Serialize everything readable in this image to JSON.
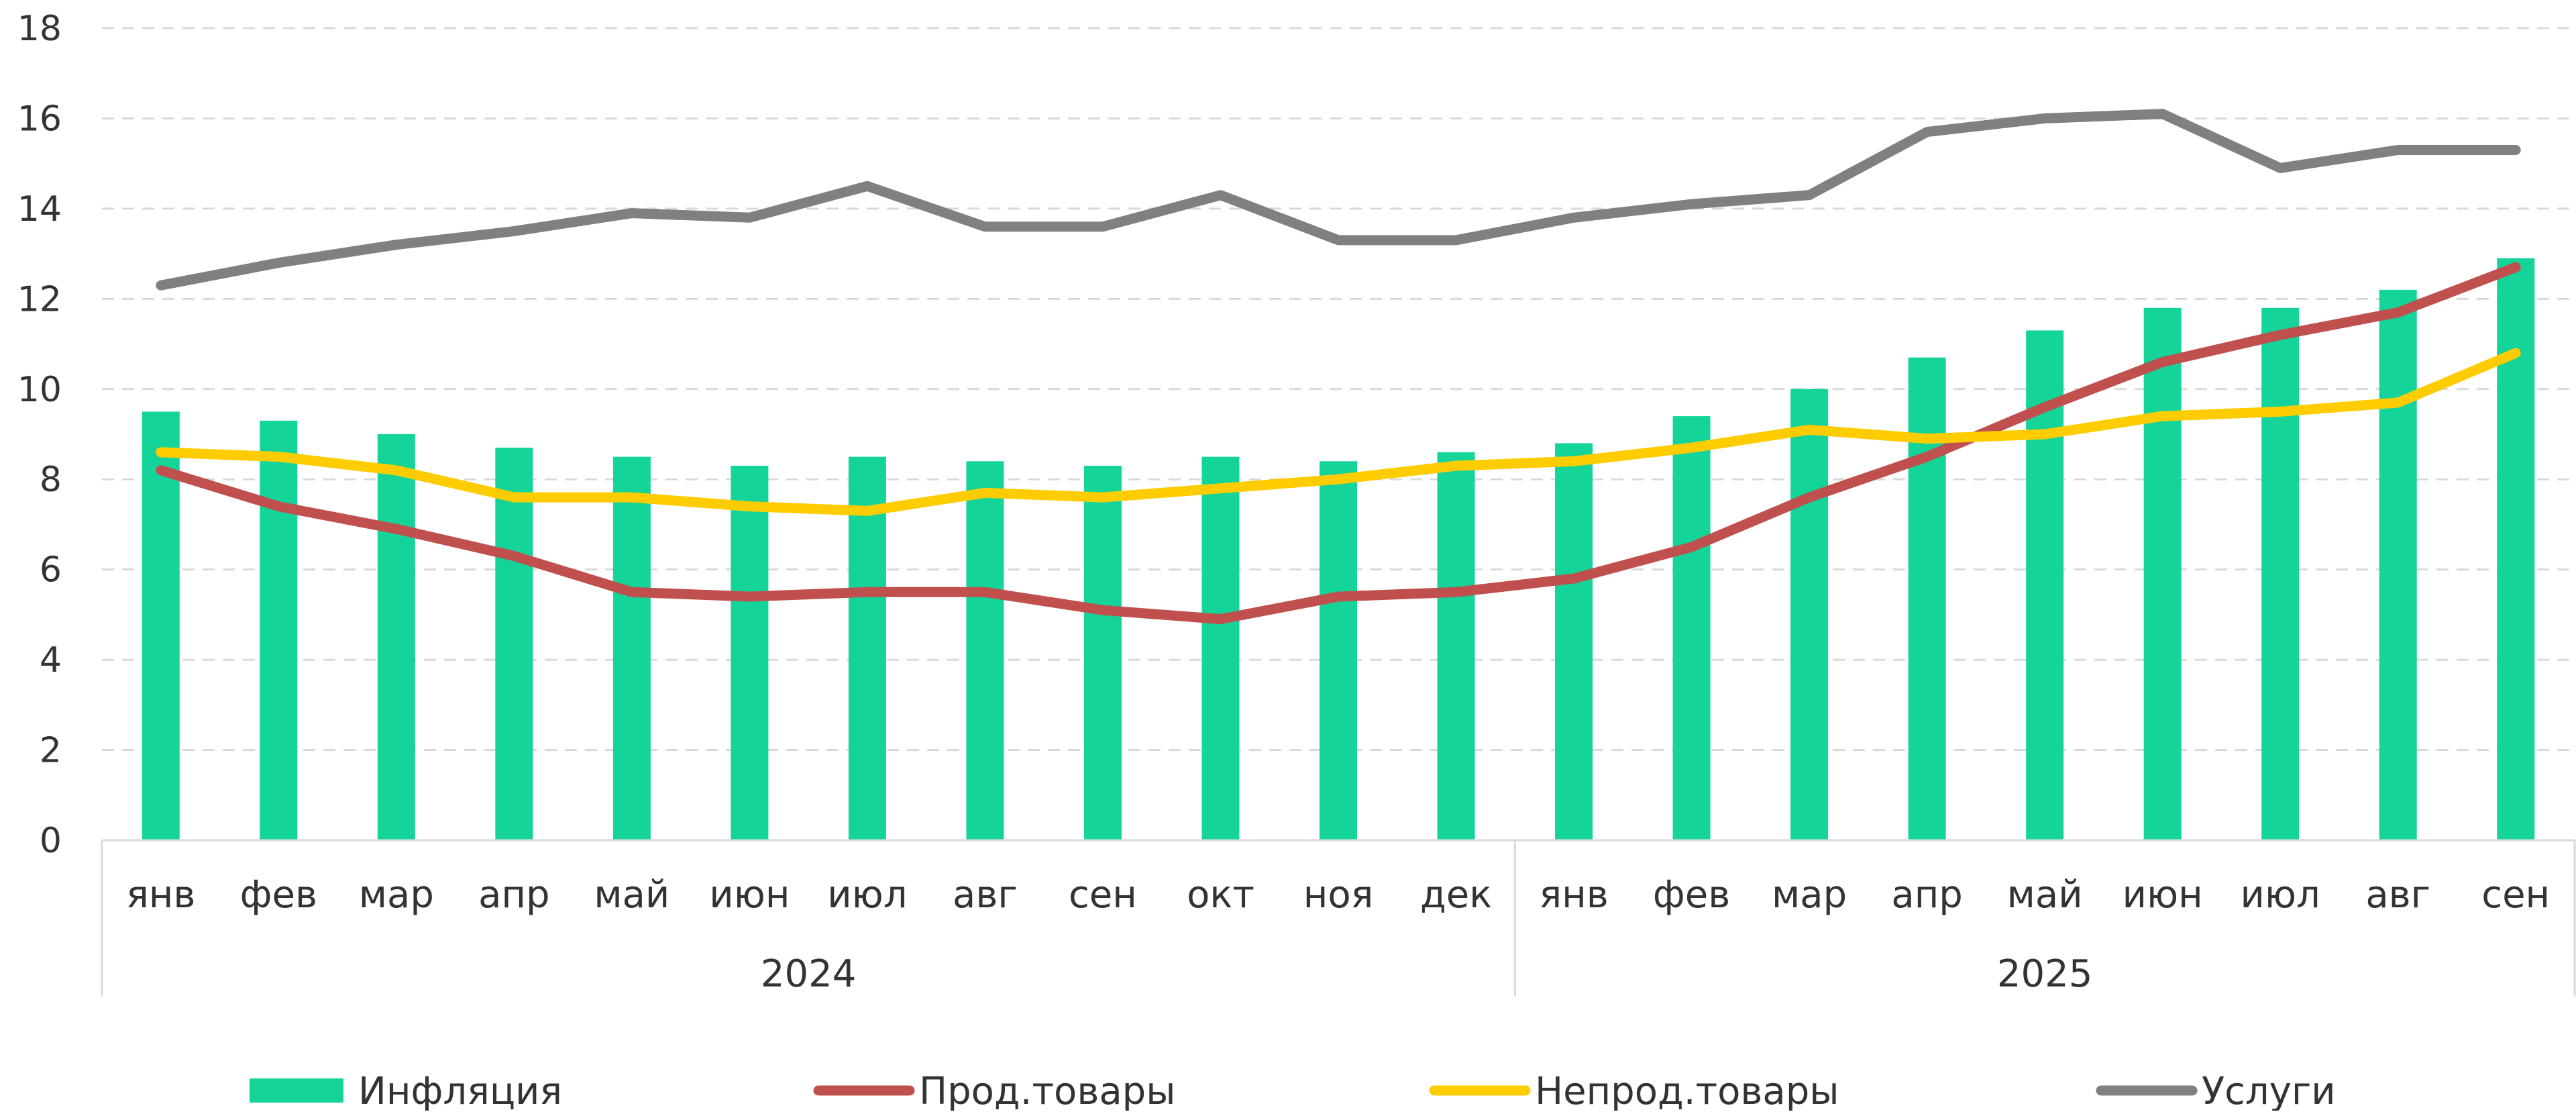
{
  "chart_data": {
    "type": "bar",
    "title": "",
    "xlabel": "",
    "ylabel": "",
    "ylim": [
      0,
      18
    ],
    "yticks": [
      "0",
      "2",
      "4",
      "6",
      "8",
      "10",
      "12",
      "14",
      "16",
      "18"
    ],
    "grid": "horizontal-dashed",
    "legend_position": "bottom",
    "categories": [
      "янв",
      "фев",
      "мар",
      "апр",
      "май",
      "июн",
      "июл",
      "авг",
      "сен",
      "окт",
      "ноя",
      "дек",
      "янв",
      "фев",
      "мар",
      "апр",
      "май",
      "июн",
      "июл",
      "авг",
      "сен"
    ],
    "groups": [
      {
        "label": "2024",
        "count": 12
      },
      {
        "label": "2025",
        "count": 9
      }
    ],
    "series": [
      {
        "name": "Инфляция",
        "kind": "bar",
        "color": "#14D499",
        "values": [
          9.5,
          9.3,
          9.0,
          8.7,
          8.5,
          8.3,
          8.5,
          8.4,
          8.3,
          8.5,
          8.4,
          8.6,
          8.8,
          9.4,
          10.0,
          10.7,
          11.3,
          11.8,
          11.8,
          12.2,
          12.9
        ]
      },
      {
        "name": "Прод.товары",
        "kind": "line",
        "color": "#C0504D",
        "values": [
          8.2,
          7.4,
          6.9,
          6.3,
          5.5,
          5.4,
          5.5,
          5.5,
          5.1,
          4.9,
          5.4,
          5.5,
          5.8,
          6.5,
          7.6,
          8.5,
          9.6,
          10.6,
          11.2,
          11.7,
          12.7
        ]
      },
      {
        "name": "Непрод.товары",
        "kind": "line",
        "color": "#FFCC00",
        "values": [
          8.6,
          8.5,
          8.2,
          7.6,
          7.6,
          7.4,
          7.3,
          7.7,
          7.6,
          7.8,
          8.0,
          8.3,
          8.4,
          8.7,
          9.1,
          8.9,
          9.0,
          9.4,
          9.5,
          9.7,
          10.8
        ]
      },
      {
        "name": "Услуги",
        "kind": "line",
        "color": "#808080",
        "values": [
          12.3,
          12.8,
          13.2,
          13.5,
          13.9,
          13.8,
          14.5,
          13.6,
          13.6,
          14.3,
          13.3,
          13.3,
          13.8,
          14.1,
          14.3,
          15.7,
          16.0,
          16.1,
          14.9,
          15.3,
          15.3
        ]
      }
    ]
  }
}
